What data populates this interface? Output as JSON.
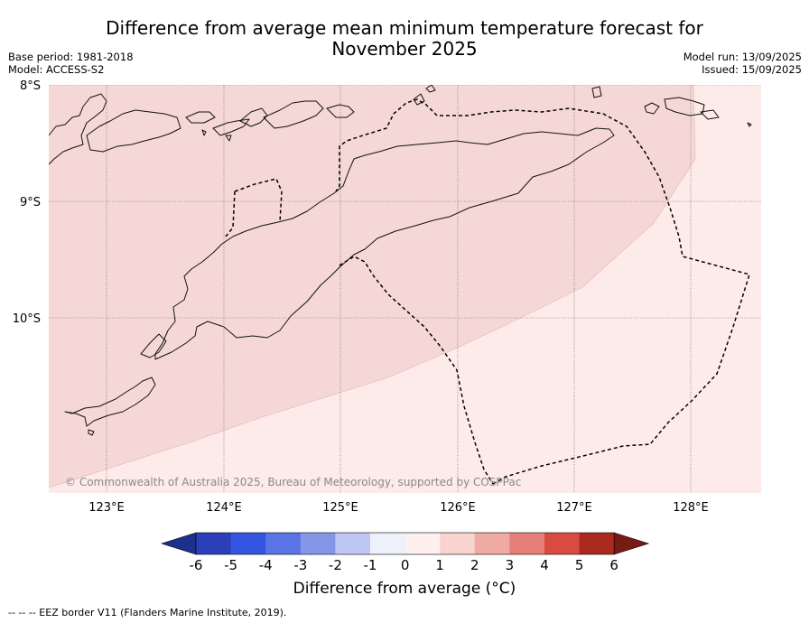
{
  "title": {
    "line1": "Difference from average mean minimum temperature forecast for",
    "line2": "November 2025"
  },
  "meta_left": {
    "base_period": "Base period: 1981-2018",
    "model": "Model: ACCESS-S2"
  },
  "meta_right": {
    "model_run": "Model run: 13/09/2025",
    "issued": "Issued: 15/09/2025"
  },
  "map": {
    "lat_labels": [
      "8°S",
      "9°S",
      "10°S"
    ],
    "lon_labels": [
      "123°E",
      "124°E",
      "125°E",
      "126°E",
      "127°E",
      "128°E"
    ],
    "copyright": "© Commonwealth of Australia 2025, Bureau of Meteorology, supported by COSPPac",
    "fill_colors": {
      "band_1_2": "#f5d8d6",
      "band_0_1": "#fcebe9"
    }
  },
  "colorbar": {
    "ticks": [
      "-6",
      "-5",
      "-4",
      "-3",
      "-2",
      "-1",
      "0",
      "1",
      "2",
      "3",
      "4",
      "5",
      "6"
    ],
    "colors": [
      "#1f2f8c",
      "#2b40b8",
      "#3355e0",
      "#5a74e6",
      "#8596e8",
      "#bfc6f2",
      "#eef0fb",
      "#fdf0ee",
      "#f8d4d0",
      "#efaaa4",
      "#e67f77",
      "#d94a40",
      "#ab2a20",
      "#7a1a15"
    ],
    "label": "Difference from average (°C)"
  },
  "legend_note": "--  --  -- EEZ border V11 (Flanders Marine Institute, 2019)."
}
